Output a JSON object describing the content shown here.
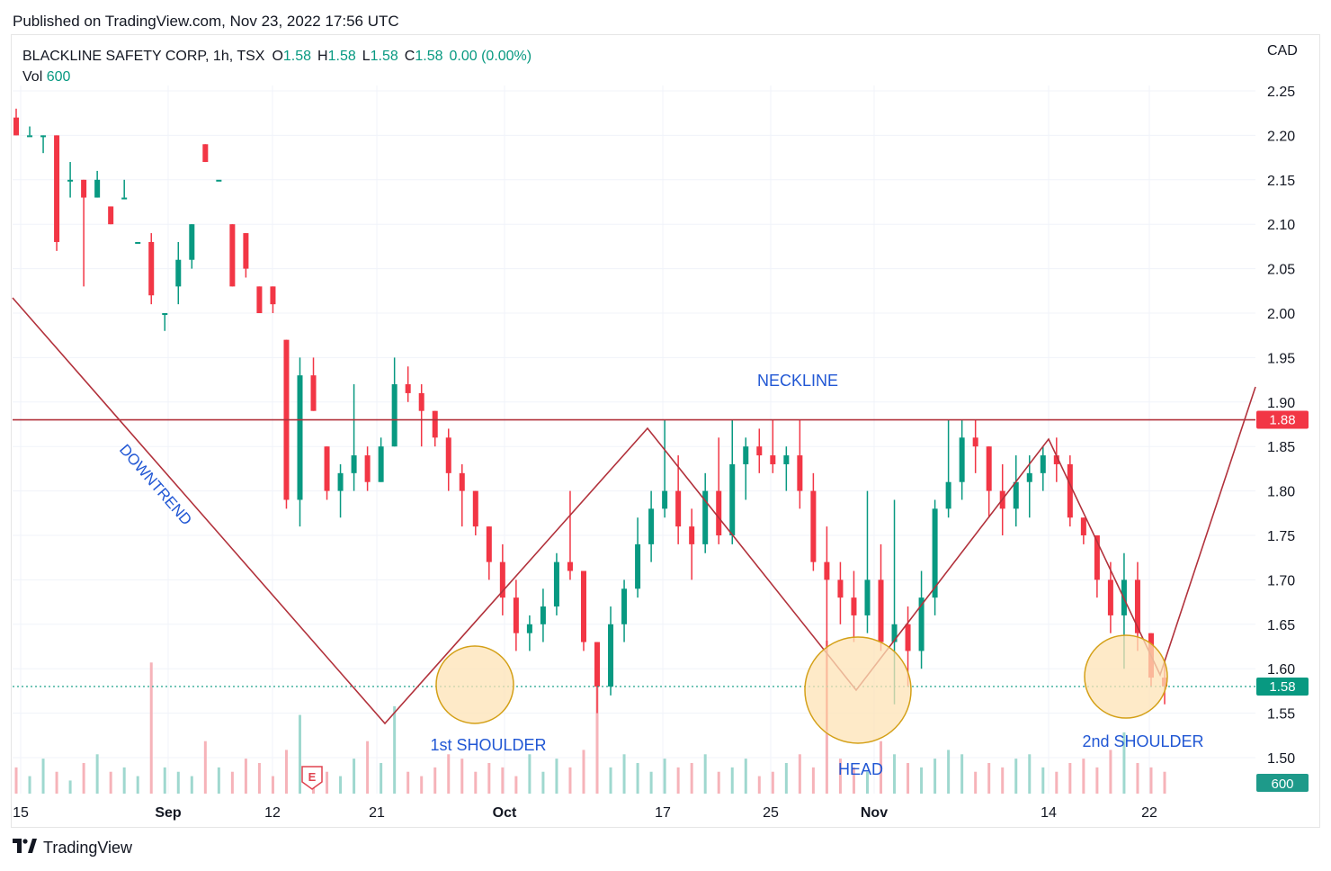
{
  "header": {
    "published": "Published on TradingView.com, Nov 23, 2022 17:56 UTC"
  },
  "legend": {
    "symbol": "BLACKLINE SAFETY CORP, 1h, TSX",
    "o_label": "O",
    "o": "1.58",
    "h_label": "H",
    "h": "1.58",
    "l_label": "L",
    "l": "1.58",
    "c_label": "C",
    "c": "1.58",
    "change": "0.00 (0.00%)",
    "vol_label": "Vol",
    "vol": "600"
  },
  "footer": {
    "brand": "TradingView",
    "logo": "tradingview-logo-icon"
  },
  "colors": {
    "up": "#089981",
    "down": "#f23645",
    "annotation": "#b2323c",
    "text_annotation": "#2157d4",
    "circle_fill": "#fde3b6",
    "circle_stroke": "#d4a017",
    "neckline_tag": "#f23645",
    "price_tag": "#089981"
  },
  "chart_data": {
    "type": "candlestick",
    "currency": "CAD",
    "ylim": [
      1.46,
      2.28
    ],
    "y_ticks": [
      "2.25",
      "2.20",
      "2.15",
      "2.10",
      "2.05",
      "2.00",
      "1.95",
      "1.90",
      "1.85",
      "1.80",
      "1.75",
      "1.70",
      "1.65",
      "1.60",
      "1.55",
      "1.50"
    ],
    "x_ticks": [
      "15",
      "Sep",
      "12",
      "21",
      "Oct",
      "17",
      "25",
      "Nov",
      "14",
      "22"
    ],
    "last_price": "1.58",
    "neckline_price": "1.88",
    "volume_tag": "600",
    "earnings_marker": "E",
    "candles": [
      [
        2.22,
        2.23,
        2.2,
        2.2
      ],
      [
        2.2,
        2.21,
        2.2,
        2.2
      ],
      [
        2.2,
        2.2,
        2.18,
        2.2
      ],
      [
        2.2,
        2.2,
        2.07,
        2.08
      ],
      [
        2.15,
        2.17,
        2.13,
        2.15
      ],
      [
        2.15,
        2.15,
        2.03,
        2.13
      ],
      [
        2.13,
        2.16,
        2.13,
        2.15
      ],
      [
        2.12,
        2.12,
        2.1,
        2.1
      ],
      [
        2.13,
        2.15,
        2.13,
        2.13
      ],
      [
        2.08,
        2.08,
        2.08,
        2.08
      ],
      [
        2.08,
        2.09,
        2.01,
        2.02
      ],
      [
        2.0,
        2.0,
        1.98,
        2.0
      ],
      [
        2.03,
        2.08,
        2.01,
        2.06
      ],
      [
        2.06,
        2.1,
        2.05,
        2.1
      ],
      [
        2.19,
        2.19,
        2.17,
        2.17
      ],
      [
        2.15,
        2.15,
        2.15,
        2.15
      ],
      [
        2.1,
        2.1,
        2.03,
        2.03
      ],
      [
        2.09,
        2.09,
        2.04,
        2.05
      ],
      [
        2.03,
        2.03,
        2.0,
        2.0
      ],
      [
        2.03,
        2.03,
        2.0,
        2.01
      ],
      [
        1.97,
        1.97,
        1.78,
        1.79
      ],
      [
        1.79,
        1.95,
        1.76,
        1.93
      ],
      [
        1.93,
        1.95,
        1.89,
        1.89
      ],
      [
        1.85,
        1.85,
        1.79,
        1.8
      ],
      [
        1.8,
        1.83,
        1.77,
        1.82
      ],
      [
        1.82,
        1.92,
        1.8,
        1.84
      ],
      [
        1.84,
        1.85,
        1.8,
        1.81
      ],
      [
        1.81,
        1.86,
        1.81,
        1.85
      ],
      [
        1.85,
        1.95,
        1.85,
        1.92
      ],
      [
        1.92,
        1.94,
        1.9,
        1.91
      ],
      [
        1.91,
        1.92,
        1.85,
        1.89
      ],
      [
        1.89,
        1.89,
        1.85,
        1.86
      ],
      [
        1.86,
        1.87,
        1.8,
        1.82
      ],
      [
        1.82,
        1.83,
        1.76,
        1.8
      ],
      [
        1.8,
        1.8,
        1.75,
        1.76
      ],
      [
        1.76,
        1.76,
        1.7,
        1.72
      ],
      [
        1.72,
        1.74,
        1.66,
        1.68
      ],
      [
        1.68,
        1.7,
        1.62,
        1.64
      ],
      [
        1.64,
        1.66,
        1.62,
        1.65
      ],
      [
        1.65,
        1.69,
        1.63,
        1.67
      ],
      [
        1.67,
        1.73,
        1.66,
        1.72
      ],
      [
        1.72,
        1.8,
        1.7,
        1.71
      ],
      [
        1.71,
        1.71,
        1.62,
        1.63
      ],
      [
        1.63,
        1.63,
        1.55,
        1.58
      ],
      [
        1.58,
        1.67,
        1.57,
        1.65
      ],
      [
        1.65,
        1.7,
        1.63,
        1.69
      ],
      [
        1.69,
        1.77,
        1.68,
        1.74
      ],
      [
        1.74,
        1.8,
        1.72,
        1.78
      ],
      [
        1.78,
        1.88,
        1.77,
        1.8
      ],
      [
        1.8,
        1.84,
        1.74,
        1.76
      ],
      [
        1.76,
        1.78,
        1.7,
        1.74
      ],
      [
        1.74,
        1.82,
        1.73,
        1.8
      ],
      [
        1.8,
        1.86,
        1.74,
        1.75
      ],
      [
        1.75,
        1.88,
        1.74,
        1.83
      ],
      [
        1.83,
        1.86,
        1.79,
        1.85
      ],
      [
        1.85,
        1.87,
        1.82,
        1.84
      ],
      [
        1.84,
        1.88,
        1.82,
        1.83
      ],
      [
        1.83,
        1.85,
        1.8,
        1.84
      ],
      [
        1.84,
        1.88,
        1.78,
        1.8
      ],
      [
        1.8,
        1.82,
        1.71,
        1.72
      ],
      [
        1.72,
        1.76,
        1.53,
        1.7
      ],
      [
        1.7,
        1.72,
        1.65,
        1.68
      ],
      [
        1.68,
        1.71,
        1.63,
        1.66
      ],
      [
        1.66,
        1.8,
        1.64,
        1.7
      ],
      [
        1.7,
        1.74,
        1.62,
        1.63
      ],
      [
        1.63,
        1.79,
        1.56,
        1.65
      ],
      [
        1.65,
        1.67,
        1.58,
        1.62
      ],
      [
        1.62,
        1.71,
        1.6,
        1.68
      ],
      [
        1.68,
        1.79,
        1.66,
        1.78
      ],
      [
        1.78,
        1.88,
        1.77,
        1.81
      ],
      [
        1.81,
        1.88,
        1.79,
        1.86
      ],
      [
        1.86,
        1.88,
        1.82,
        1.85
      ],
      [
        1.85,
        1.85,
        1.77,
        1.8
      ],
      [
        1.8,
        1.83,
        1.75,
        1.78
      ],
      [
        1.78,
        1.84,
        1.76,
        1.81
      ],
      [
        1.81,
        1.84,
        1.77,
        1.82
      ],
      [
        1.82,
        1.85,
        1.8,
        1.84
      ],
      [
        1.84,
        1.86,
        1.81,
        1.83
      ],
      [
        1.83,
        1.84,
        1.76,
        1.77
      ],
      [
        1.77,
        1.77,
        1.74,
        1.75
      ],
      [
        1.75,
        1.75,
        1.68,
        1.7
      ],
      [
        1.7,
        1.72,
        1.64,
        1.66
      ],
      [
        1.66,
        1.73,
        1.6,
        1.7
      ],
      [
        1.7,
        1.72,
        1.62,
        1.64
      ],
      [
        1.64,
        1.64,
        1.58,
        1.59
      ],
      [
        1.59,
        1.61,
        1.56,
        1.58
      ]
    ],
    "volumes": [
      6,
      4,
      8,
      5,
      3,
      7,
      9,
      5,
      6,
      4,
      30,
      6,
      5,
      4,
      12,
      6,
      5,
      8,
      7,
      4,
      10,
      18,
      6,
      5,
      4,
      8,
      12,
      7,
      20,
      5,
      4,
      6,
      9,
      8,
      5,
      7,
      6,
      4,
      9,
      5,
      8,
      6,
      10,
      28,
      6,
      9,
      7,
      5,
      8,
      6,
      7,
      9,
      5,
      6,
      8,
      4,
      5,
      7,
      9,
      6,
      35,
      8,
      6,
      5,
      12,
      9,
      7,
      6,
      8,
      10,
      9,
      5,
      7,
      6,
      8,
      9,
      6,
      5,
      7,
      8,
      6,
      10,
      14,
      7,
      6,
      5
    ]
  },
  "annotations": {
    "neckline": "NECKLINE",
    "downtrend": "DOWNTREND",
    "shoulder1": "1st SHOULDER",
    "head": "HEAD",
    "shoulder2": "2nd SHOULDER"
  }
}
